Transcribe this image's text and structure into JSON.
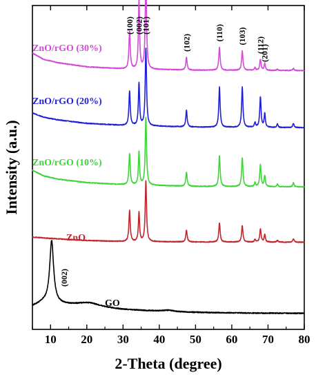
{
  "chart_data": {
    "type": "line",
    "xlabel": "2-Theta (degree)",
    "ylabel": "Intensity (a.u.)",
    "xlim": [
      5,
      80
    ],
    "x_ticks": [
      10,
      20,
      30,
      40,
      50,
      60,
      70,
      80
    ],
    "y_ticks_shown": false,
    "grid": false,
    "legend": "none (series labelled directly on plot)",
    "series": [
      {
        "name": "GO",
        "color": "#000000",
        "baseline": 0.02,
        "background": [
          [
            5,
            0.1
          ],
          [
            8,
            0.14
          ],
          [
            12,
            0.12
          ],
          [
            20,
            0.09
          ],
          [
            30,
            0.06
          ],
          [
            45,
            0.035
          ],
          [
            60,
            0.025
          ],
          [
            80,
            0.02
          ]
        ],
        "peaks": [
          {
            "x": 10.3,
            "h": 0.7,
            "w": 0.65
          },
          {
            "x": 20.5,
            "h": 0.05,
            "w": 4.0
          },
          {
            "x": 42.5,
            "h": 0.015,
            "w": 2.0
          }
        ]
      },
      {
        "name": "ZnO",
        "color": "#c0262d",
        "baseline": 0.0,
        "background": [
          [
            5,
            0.08
          ],
          [
            10,
            0.06
          ],
          [
            20,
            0.03
          ],
          [
            30,
            0.015
          ],
          [
            50,
            0.008
          ],
          [
            80,
            0.005
          ]
        ],
        "peaks": [
          {
            "x": 31.8,
            "h": 0.45,
            "w": 0.22
          },
          {
            "x": 34.4,
            "h": 0.42,
            "w": 0.2
          },
          {
            "x": 36.3,
            "h": 0.88,
            "w": 0.22
          },
          {
            "x": 47.5,
            "h": 0.17,
            "w": 0.22
          },
          {
            "x": 56.6,
            "h": 0.28,
            "w": 0.22
          },
          {
            "x": 62.9,
            "h": 0.24,
            "w": 0.22
          },
          {
            "x": 66.4,
            "h": 0.04,
            "w": 0.2
          },
          {
            "x": 67.9,
            "h": 0.19,
            "w": 0.22
          },
          {
            "x": 69.1,
            "h": 0.11,
            "w": 0.2
          },
          {
            "x": 72.6,
            "h": 0.03,
            "w": 0.2
          },
          {
            "x": 77.0,
            "h": 0.05,
            "w": 0.2
          }
        ]
      },
      {
        "name": "ZnO/rGO (10%)",
        "color": "#3fd43a",
        "baseline": 0.0,
        "background": [
          [
            5,
            0.25
          ],
          [
            8,
            0.17
          ],
          [
            12,
            0.12
          ],
          [
            20,
            0.07
          ],
          [
            30,
            0.04
          ],
          [
            50,
            0.015
          ],
          [
            80,
            0.008
          ]
        ],
        "peaks": [
          {
            "x": 31.8,
            "h": 0.45,
            "w": 0.22
          },
          {
            "x": 34.4,
            "h": 0.48,
            "w": 0.2
          },
          {
            "x": 36.3,
            "h": 0.98,
            "w": 0.22
          },
          {
            "x": 47.5,
            "h": 0.2,
            "w": 0.22
          },
          {
            "x": 56.6,
            "h": 0.45,
            "w": 0.22
          },
          {
            "x": 62.9,
            "h": 0.42,
            "w": 0.22
          },
          {
            "x": 66.4,
            "h": 0.06,
            "w": 0.2
          },
          {
            "x": 67.9,
            "h": 0.32,
            "w": 0.22
          },
          {
            "x": 69.1,
            "h": 0.16,
            "w": 0.2
          },
          {
            "x": 72.6,
            "h": 0.04,
            "w": 0.2
          },
          {
            "x": 77.0,
            "h": 0.06,
            "w": 0.2
          }
        ]
      },
      {
        "name": "ZnO/rGO (20%)",
        "color": "#1f1fd9",
        "baseline": 0.0,
        "background": [
          [
            5,
            0.22
          ],
          [
            8,
            0.16
          ],
          [
            12,
            0.12
          ],
          [
            20,
            0.07
          ],
          [
            30,
            0.04
          ],
          [
            50,
            0.015
          ],
          [
            80,
            0.008
          ]
        ],
        "peaks": [
          {
            "x": 31.8,
            "h": 0.5,
            "w": 0.22
          },
          {
            "x": 34.4,
            "h": 0.62,
            "w": 0.2
          },
          {
            "x": 36.3,
            "h": 1.12,
            "w": 0.22
          },
          {
            "x": 47.5,
            "h": 0.24,
            "w": 0.22
          },
          {
            "x": 56.6,
            "h": 0.58,
            "w": 0.22
          },
          {
            "x": 62.9,
            "h": 0.58,
            "w": 0.22
          },
          {
            "x": 66.4,
            "h": 0.07,
            "w": 0.2
          },
          {
            "x": 67.9,
            "h": 0.44,
            "w": 0.22
          },
          {
            "x": 69.1,
            "h": 0.2,
            "w": 0.2
          },
          {
            "x": 72.6,
            "h": 0.05,
            "w": 0.2
          },
          {
            "x": 77.0,
            "h": 0.06,
            "w": 0.2
          }
        ]
      },
      {
        "name": "ZnO/rGO (30%)",
        "color": "#d24ad8",
        "baseline": 0.0,
        "background": [
          [
            5,
            0.26
          ],
          [
            8,
            0.17
          ],
          [
            12,
            0.12
          ],
          [
            20,
            0.06
          ],
          [
            30,
            0.03
          ],
          [
            50,
            0.012
          ],
          [
            80,
            0.006
          ]
        ],
        "peaks": [
          {
            "x": 31.8,
            "h": 0.55,
            "w": 0.22
          },
          {
            "x": 34.4,
            "h": 1.0,
            "w": 0.2
          },
          {
            "x": 36.3,
            "h": 1.3,
            "w": 0.22
          },
          {
            "x": 47.5,
            "h": 0.18,
            "w": 0.22
          },
          {
            "x": 56.6,
            "h": 0.33,
            "w": 0.22
          },
          {
            "x": 62.9,
            "h": 0.28,
            "w": 0.22
          },
          {
            "x": 66.4,
            "h": 0.04,
            "w": 0.2
          },
          {
            "x": 67.9,
            "h": 0.16,
            "w": 0.22
          },
          {
            "x": 69.1,
            "h": 0.1,
            "w": 0.2
          },
          {
            "x": 72.6,
            "h": 0.02,
            "w": 0.2
          },
          {
            "x": 77.0,
            "h": 0.03,
            "w": 0.2
          }
        ]
      }
    ],
    "annotations": {
      "hkl_peaks": [
        {
          "label": "(100)",
          "x": 31.8
        },
        {
          "label": "(002)",
          "x": 34.4
        },
        {
          "label": "(101)",
          "x": 36.3
        },
        {
          "label": "(102)",
          "x": 47.5
        },
        {
          "label": "(110)",
          "x": 56.6
        },
        {
          "label": "(103)",
          "x": 62.9
        },
        {
          "label": "(112)",
          "x": 67.9
        },
        {
          "label": "(201)",
          "x": 69.1
        }
      ],
      "go_peak": {
        "label": "(002)",
        "x": 10.3
      }
    }
  }
}
